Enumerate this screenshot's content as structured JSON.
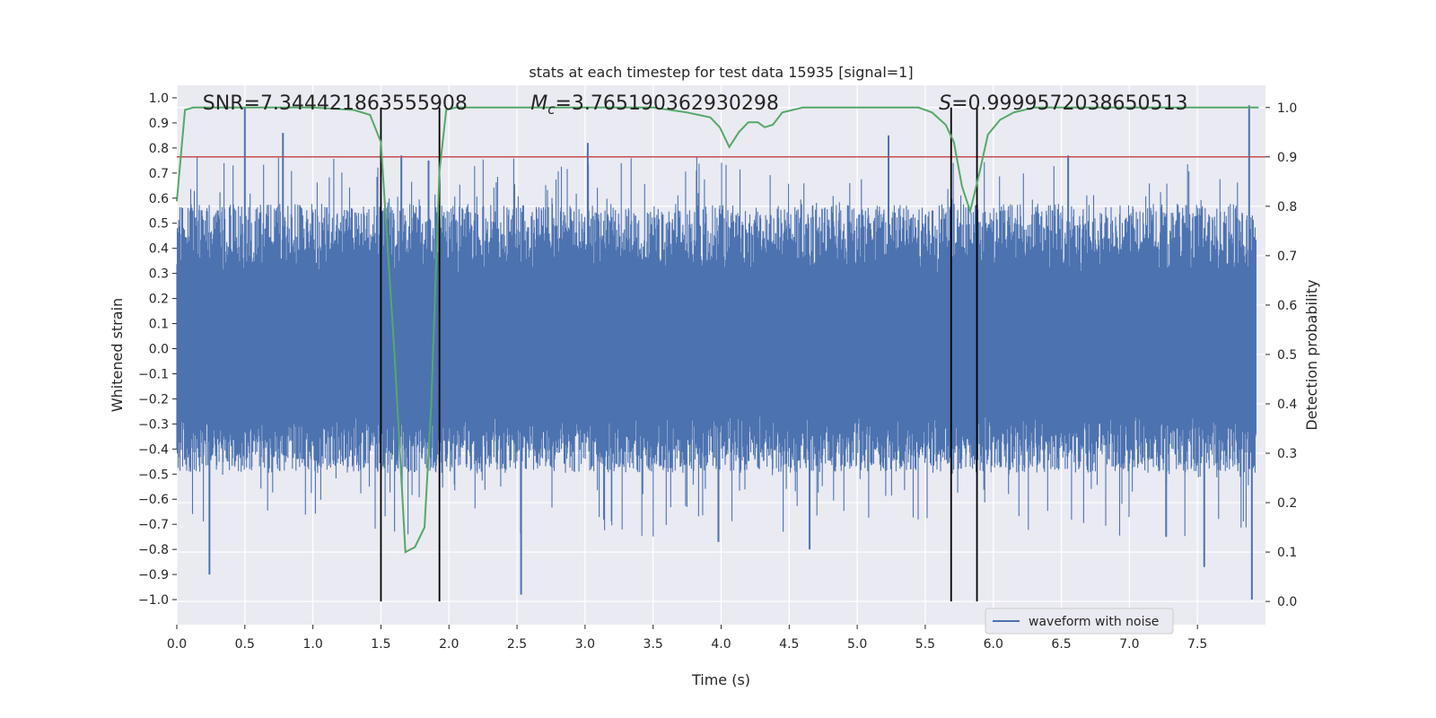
{
  "chart_data": {
    "type": "line",
    "title": "stats at each timestep for test data 15935 [signal=1]",
    "xlabel": "Time (s)",
    "ylabel": "Whitened strain",
    "y2label": "Detection probability",
    "xlim": [
      0.0,
      8.0
    ],
    "ylim": [
      -1.1,
      1.05
    ],
    "y2lim": [
      -0.047,
      1.045
    ],
    "xticks": [
      0.0,
      0.5,
      1.0,
      1.5,
      2.0,
      2.5,
      3.0,
      3.5,
      4.0,
      4.5,
      5.0,
      5.5,
      6.0,
      6.5,
      7.0,
      7.5
    ],
    "xtick_labels": [
      "0.0",
      "0.5",
      "1.0",
      "1.5",
      "2.0",
      "2.5",
      "3.0",
      "3.5",
      "4.0",
      "4.5",
      "5.0",
      "5.5",
      "6.0",
      "6.5",
      "7.0",
      "7.5"
    ],
    "yticks": [
      1.0,
      0.9,
      0.8,
      0.7,
      0.6,
      0.5,
      0.4,
      0.3,
      0.2,
      0.1,
      0.0,
      -0.1,
      -0.2,
      -0.3,
      -0.4,
      -0.5,
      -0.6,
      -0.7,
      -0.8,
      -0.9,
      -1.0
    ],
    "ytick_labels": [
      "1.0",
      "0.9",
      "0.8",
      "0.7",
      "0.6",
      "0.5",
      "0.4",
      "0.3",
      "0.2",
      "0.1",
      "0.0",
      "−0.1",
      "−0.2",
      "−0.3",
      "−0.4",
      "−0.5",
      "−0.6",
      "−0.7",
      "−0.8",
      "−0.9",
      "−1.0"
    ],
    "y2ticks": [
      1.0,
      0.9,
      0.8,
      0.7,
      0.6,
      0.5,
      0.4,
      0.3,
      0.2,
      0.1,
      0.0
    ],
    "y2tick_labels": [
      "1.0",
      "0.9",
      "0.8",
      "0.7",
      "0.6",
      "0.5",
      "0.4",
      "0.3",
      "0.2",
      "0.1",
      "0.0"
    ],
    "grid": true,
    "annotations": {
      "snr": "SNR=7.344421863555908",
      "mc_symbol": "M",
      "mc_sub": "c",
      "mc_value": "=3.765190362930298",
      "s_symbol": "S",
      "s_value": "=0.9999572038650513"
    },
    "threshold": {
      "axis": "y2",
      "value": 0.9,
      "color": "#c44e52"
    },
    "vertical_lines": [
      1.5,
      1.93,
      5.69,
      5.88
    ],
    "series": [
      {
        "name": "waveform with noise",
        "axis": "y",
        "color": "#4c72b0",
        "style": "dense_noise",
        "x_range": [
          0.0,
          8.0
        ],
        "envelope_upper": 0.55,
        "envelope_lower": -0.45,
        "peaks": [
          {
            "x": 0.5,
            "y": 0.96
          },
          {
            "x": 0.78,
            "y": 0.86
          },
          {
            "x": 1.65,
            "y": 0.77
          },
          {
            "x": 3.02,
            "y": 0.82
          },
          {
            "x": 5.23,
            "y": 0.85
          },
          {
            "x": 7.88,
            "y": 0.97
          },
          {
            "x": 0.24,
            "y": -0.9
          },
          {
            "x": 2.53,
            "y": -0.98
          },
          {
            "x": 3.98,
            "y": -0.77
          },
          {
            "x": 4.65,
            "y": -0.8
          },
          {
            "x": 7.27,
            "y": -0.75
          },
          {
            "x": 7.55,
            "y": -0.87
          },
          {
            "x": 7.9,
            "y": -1.0
          },
          {
            "x": 1.85,
            "y": 0.75
          },
          {
            "x": 6.55,
            "y": 0.77
          }
        ]
      },
      {
        "name": "detection probability",
        "axis": "y2",
        "color": "#55a868",
        "x": [
          0.0,
          0.06,
          0.12,
          0.2,
          0.5,
          1.0,
          1.3,
          1.42,
          1.5,
          1.6,
          1.68,
          1.75,
          1.82,
          1.87,
          1.93,
          1.98,
          2.05,
          2.5,
          3.0,
          3.5,
          3.75,
          3.92,
          3.99,
          4.06,
          4.13,
          4.2,
          4.27,
          4.32,
          4.38,
          4.45,
          4.6,
          5.0,
          5.45,
          5.55,
          5.65,
          5.71,
          5.77,
          5.83,
          5.9,
          5.96,
          6.05,
          6.15,
          6.3,
          7.0,
          7.5,
          7.95
        ],
        "y": [
          0.81,
          0.995,
          1.0,
          1.0,
          1.0,
          1.0,
          0.995,
          0.985,
          0.93,
          0.5,
          0.1,
          0.11,
          0.15,
          0.4,
          0.87,
          0.995,
          1.0,
          1.0,
          1.0,
          1.0,
          0.99,
          0.98,
          0.96,
          0.92,
          0.95,
          0.97,
          0.97,
          0.96,
          0.965,
          0.99,
          1.0,
          1.0,
          1.0,
          0.99,
          0.965,
          0.93,
          0.84,
          0.79,
          0.87,
          0.945,
          0.975,
          0.99,
          1.0,
          1.0,
          1.0,
          1.0
        ]
      }
    ],
    "legend": {
      "position": "lower-center-right",
      "entries": [
        "waveform with noise"
      ]
    }
  }
}
